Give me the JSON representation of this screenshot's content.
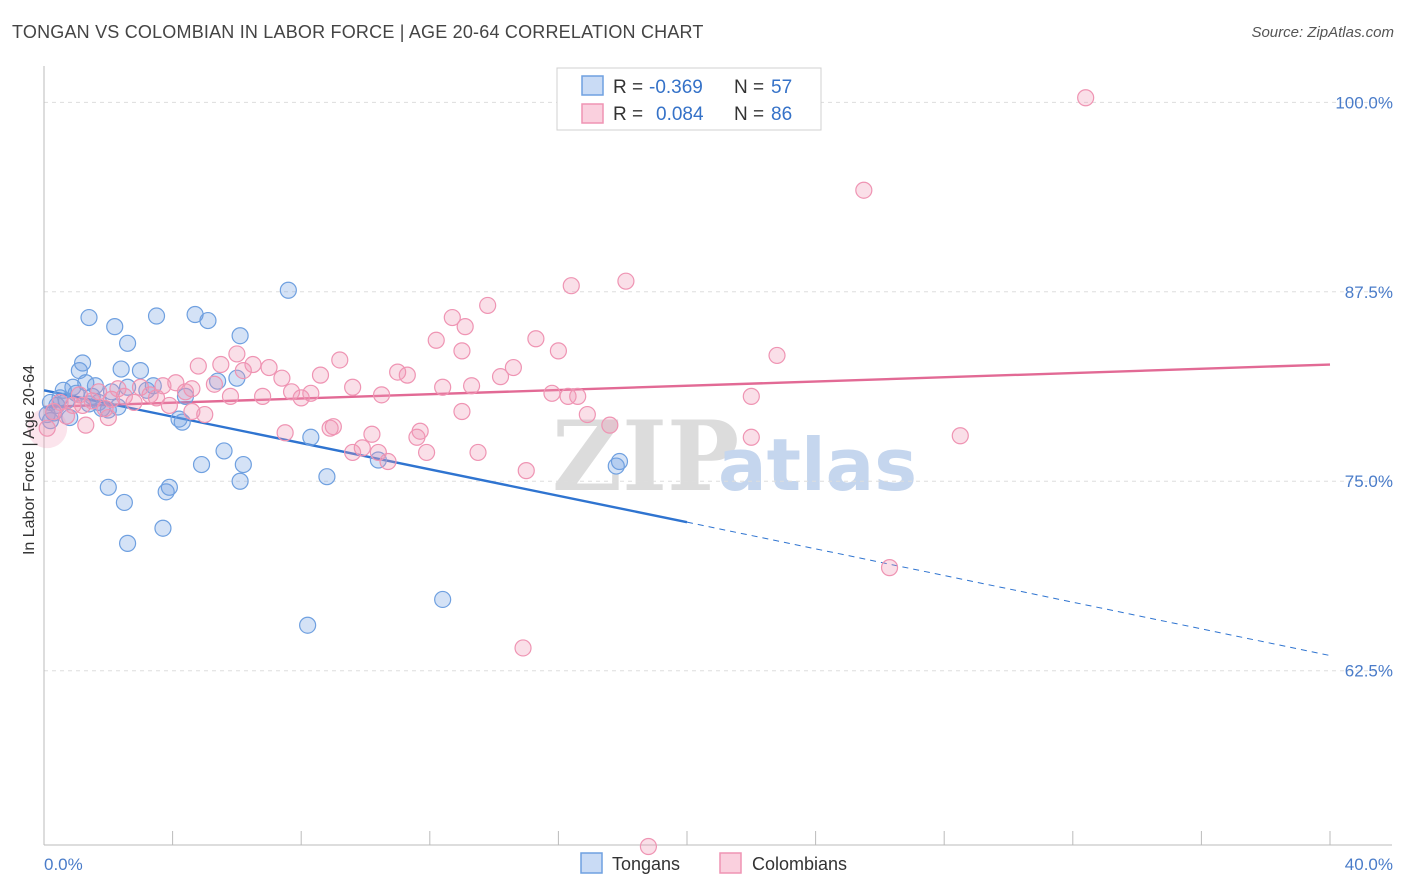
{
  "header": {
    "title": "TONGAN VS COLOMBIAN IN LABOR FORCE | AGE 20-64 CORRELATION CHART",
    "source": "Source: ZipAtlas.com"
  },
  "watermark": {
    "zip": "ZIP",
    "atlas": "atlas"
  },
  "legend_box": {
    "r_label": "R =",
    "n_label": "N =",
    "rows": [
      {
        "series": "Tongans",
        "r": "-0.369",
        "n": "57",
        "color": "#6fa0e0"
      },
      {
        "series": "Colombians",
        "r": "0.084",
        "n": "86",
        "color": "#ef94b3"
      }
    ]
  },
  "chart_data": {
    "type": "scatter",
    "title": "TONGAN VS COLOMBIAN IN LABOR FORCE | AGE 20-64 CORRELATION CHART",
    "ylabel": "In Labor Force | Age 20-64",
    "xlabel": "",
    "xlim": [
      0,
      40
    ],
    "ylim": [
      51,
      102
    ],
    "x_tick_labels": [
      "0.0%",
      "40.0%"
    ],
    "y_ticks": [
      100,
      87.5,
      75,
      62.5
    ],
    "y_tick_labels": [
      "100.0%",
      "87.5%",
      "75.0%",
      "62.5%"
    ],
    "grid": true,
    "legend_position": "bottom-center",
    "series": [
      {
        "name": "Tongans",
        "color": "#6fa0e0",
        "trend": {
          "x0": 0,
          "y0": 81.0,
          "x1": 20,
          "y1": 72.3,
          "dashed_to_x": 40,
          "dashed_to_y": 63.5
        },
        "points": [
          [
            0.2,
            79.0
          ],
          [
            0.3,
            79.5
          ],
          [
            0.4,
            80.0
          ],
          [
            0.5,
            80.5
          ],
          [
            0.6,
            81.0
          ],
          [
            0.7,
            80.3
          ],
          [
            0.8,
            79.2
          ],
          [
            0.9,
            81.2
          ],
          [
            1.0,
            80.8
          ],
          [
            1.1,
            82.3
          ],
          [
            1.2,
            82.8
          ],
          [
            1.3,
            81.5
          ],
          [
            1.4,
            80.1
          ],
          [
            1.5,
            80.6
          ],
          [
            1.6,
            81.3
          ],
          [
            1.7,
            80.2
          ],
          [
            1.8,
            79.8
          ],
          [
            2.0,
            79.7
          ],
          [
            2.1,
            80.9
          ],
          [
            2.3,
            79.9
          ],
          [
            2.4,
            82.4
          ],
          [
            2.6,
            81.2
          ],
          [
            3.0,
            82.3
          ],
          [
            3.2,
            81.0
          ],
          [
            1.4,
            85.8
          ],
          [
            2.2,
            85.2
          ],
          [
            2.6,
            84.1
          ],
          [
            3.5,
            85.9
          ],
          [
            4.7,
            86.0
          ],
          [
            5.1,
            85.6
          ],
          [
            6.1,
            84.6
          ],
          [
            7.6,
            87.6
          ],
          [
            3.4,
            81.3
          ],
          [
            4.4,
            80.6
          ],
          [
            5.4,
            81.6
          ],
          [
            6.0,
            81.8
          ],
          [
            4.2,
            79.1
          ],
          [
            4.3,
            78.9
          ],
          [
            5.6,
            77.0
          ],
          [
            6.2,
            76.1
          ],
          [
            2.0,
            74.6
          ],
          [
            2.5,
            73.6
          ],
          [
            3.8,
            74.3
          ],
          [
            3.9,
            74.6
          ],
          [
            3.7,
            71.9
          ],
          [
            2.6,
            70.9
          ],
          [
            8.3,
            77.9
          ],
          [
            8.8,
            75.3
          ],
          [
            10.4,
            76.4
          ],
          [
            17.9,
            76.3
          ],
          [
            17.8,
            76.0
          ],
          [
            8.2,
            65.5
          ],
          [
            12.4,
            67.2
          ],
          [
            4.9,
            76.1
          ],
          [
            0.1,
            79.4
          ],
          [
            0.2,
            80.2
          ],
          [
            6.1,
            75.0
          ]
        ]
      },
      {
        "name": "Colombians",
        "color": "#ef94b3",
        "trend": {
          "x0": 0,
          "y0": 79.9,
          "x1": 40,
          "y1": 82.7
        },
        "points": [
          [
            0.1,
            78.5
          ],
          [
            0.3,
            79.6
          ],
          [
            0.5,
            80.2
          ],
          [
            0.7,
            79.3
          ],
          [
            0.9,
            80.0
          ],
          [
            1.1,
            80.7
          ],
          [
            1.3,
            78.7
          ],
          [
            1.5,
            80.3
          ],
          [
            1.7,
            80.9
          ],
          [
            1.9,
            79.8
          ],
          [
            2.1,
            80.4
          ],
          [
            2.3,
            81.1
          ],
          [
            2.5,
            80.6
          ],
          [
            2.8,
            80.2
          ],
          [
            3.0,
            81.2
          ],
          [
            3.3,
            80.7
          ],
          [
            3.5,
            80.5
          ],
          [
            3.7,
            81.3
          ],
          [
            3.9,
            80.0
          ],
          [
            4.1,
            81.5
          ],
          [
            4.4,
            80.9
          ],
          [
            4.6,
            81.1
          ],
          [
            4.8,
            82.6
          ],
          [
            5.0,
            79.4
          ],
          [
            5.3,
            81.4
          ],
          [
            5.5,
            82.7
          ],
          [
            5.8,
            80.6
          ],
          [
            6.0,
            83.4
          ],
          [
            6.2,
            82.3
          ],
          [
            6.5,
            82.7
          ],
          [
            6.8,
            80.6
          ],
          [
            7.0,
            82.5
          ],
          [
            7.4,
            81.8
          ],
          [
            7.7,
            80.9
          ],
          [
            8.0,
            80.5
          ],
          [
            8.3,
            80.8
          ],
          [
            8.6,
            82.0
          ],
          [
            8.9,
            78.5
          ],
          [
            9.2,
            83.0
          ],
          [
            9.6,
            81.2
          ],
          [
            9.9,
            77.2
          ],
          [
            10.2,
            78.1
          ],
          [
            10.5,
            80.7
          ],
          [
            10.7,
            76.3
          ],
          [
            11.0,
            82.2
          ],
          [
            11.3,
            82.0
          ],
          [
            11.6,
            77.9
          ],
          [
            11.9,
            76.9
          ],
          [
            12.2,
            84.3
          ],
          [
            12.4,
            81.2
          ],
          [
            12.7,
            85.8
          ],
          [
            13.0,
            79.6
          ],
          [
            13.1,
            85.2
          ],
          [
            13.3,
            81.3
          ],
          [
            13.5,
            76.9
          ],
          [
            13.8,
            86.6
          ],
          [
            14.2,
            81.9
          ],
          [
            14.6,
            82.5
          ],
          [
            15.0,
            75.7
          ],
          [
            15.3,
            84.4
          ],
          [
            15.8,
            80.8
          ],
          [
            16.0,
            83.6
          ],
          [
            16.4,
            87.9
          ],
          [
            16.9,
            79.4
          ],
          [
            17.6,
            78.7
          ],
          [
            18.1,
            88.2
          ],
          [
            10.4,
            76.9
          ],
          [
            14.9,
            64.0
          ],
          [
            22.8,
            83.3
          ],
          [
            25.5,
            94.2
          ],
          [
            28.5,
            78.0
          ],
          [
            32.4,
            100.3
          ],
          [
            26.3,
            69.3
          ],
          [
            22.0,
            77.9
          ],
          [
            22.0,
            80.6
          ],
          [
            18.8,
            50.9
          ],
          [
            16.3,
            80.6
          ],
          [
            11.7,
            78.3
          ],
          [
            9.6,
            76.9
          ],
          [
            2.0,
            79.2
          ],
          [
            4.6,
            79.6
          ],
          [
            7.5,
            78.2
          ],
          [
            9.0,
            78.6
          ],
          [
            13.0,
            83.6
          ],
          [
            16.6,
            80.6
          ],
          [
            1.2,
            80.0
          ]
        ]
      }
    ]
  },
  "bottom_legend": {
    "items": [
      {
        "label": "Tongans",
        "color": "#6fa0e0"
      },
      {
        "label": "Colombians",
        "color": "#ef94b3"
      }
    ]
  }
}
